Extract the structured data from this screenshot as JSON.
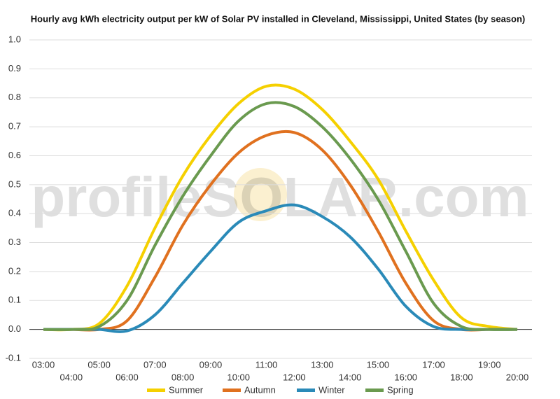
{
  "chart_data": {
    "type": "line",
    "title": "Hourly avg kWh electricity output per kW of Solar PV installed in Cleveland, Mississippi, United States (by season)",
    "watermark": "profileSOLAR.com",
    "categories": [
      "03:00",
      "04:00",
      "05:00",
      "06:00",
      "07:00",
      "08:00",
      "09:00",
      "10:00",
      "11:00",
      "12:00",
      "13:00",
      "14:00",
      "15:00",
      "16:00",
      "17:00",
      "18:00",
      "19:00",
      "20:00"
    ],
    "series": [
      {
        "name": "Summer",
        "color": "#f5d000",
        "values": [
          0,
          0,
          0.02,
          0.15,
          0.35,
          0.53,
          0.67,
          0.78,
          0.84,
          0.83,
          0.76,
          0.65,
          0.52,
          0.34,
          0.17,
          0.04,
          0.01,
          0
        ]
      },
      {
        "name": "Autumn",
        "color": "#e0711f",
        "values": [
          0,
          0,
          0,
          0.03,
          0.18,
          0.36,
          0.5,
          0.61,
          0.67,
          0.68,
          0.62,
          0.5,
          0.34,
          0.16,
          0.03,
          0,
          0,
          0
        ]
      },
      {
        "name": "Winter",
        "color": "#2a8ab8",
        "values": [
          0,
          0,
          0,
          -0.005,
          0.05,
          0.16,
          0.27,
          0.37,
          0.41,
          0.43,
          0.39,
          0.32,
          0.21,
          0.08,
          0.01,
          0,
          0,
          0
        ]
      },
      {
        "name": "Spring",
        "color": "#6a9a4f",
        "values": [
          0,
          0,
          0.01,
          0.1,
          0.29,
          0.46,
          0.6,
          0.72,
          0.78,
          0.77,
          0.7,
          0.59,
          0.45,
          0.27,
          0.09,
          0.01,
          0,
          0
        ]
      }
    ],
    "ylim": [
      -0.1,
      1.0
    ],
    "yticks": [
      -0.1,
      {
        "value": 0,
        "label": "0.0"
      },
      0.1,
      0.2,
      0.3,
      0.4,
      0.5,
      0.6,
      0.7,
      0.8,
      0.9,
      {
        "value": 1,
        "label": "1.0"
      }
    ],
    "grid": true,
    "legend": "bottom"
  }
}
